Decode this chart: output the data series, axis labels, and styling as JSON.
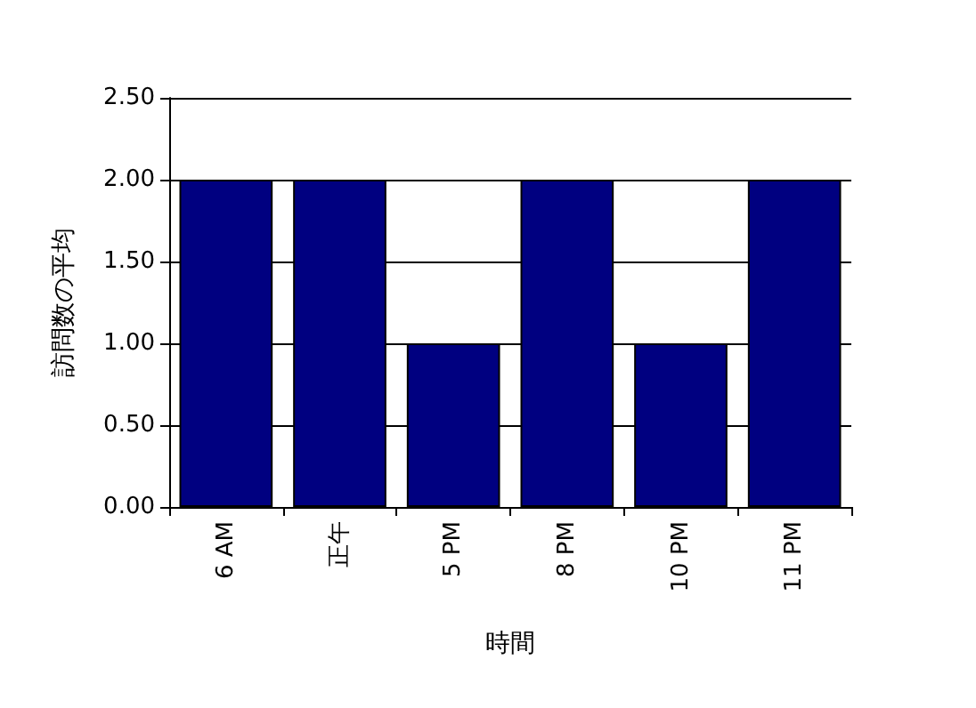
{
  "chart_data": {
    "type": "bar",
    "xlabel": "時間",
    "ylabel": "訪問数の平均",
    "categories": [
      "6 AM",
      "正午",
      "5 PM",
      "8 PM",
      "10 PM",
      "11 PM"
    ],
    "values": [
      2,
      2,
      1,
      2,
      1,
      2
    ],
    "color": "#000080",
    "ylim": [
      0,
      2.5
    ],
    "yticks": [
      {
        "value": 0,
        "label": "0.00"
      },
      {
        "value": 0.5,
        "label": "0.50"
      },
      {
        "value": 1,
        "label": "1.00"
      },
      {
        "value": 1.5,
        "label": "1.50"
      },
      {
        "value": 2,
        "label": "2.00"
      },
      {
        "value": 2.5,
        "label": "2.50"
      }
    ],
    "grid": "y"
  }
}
